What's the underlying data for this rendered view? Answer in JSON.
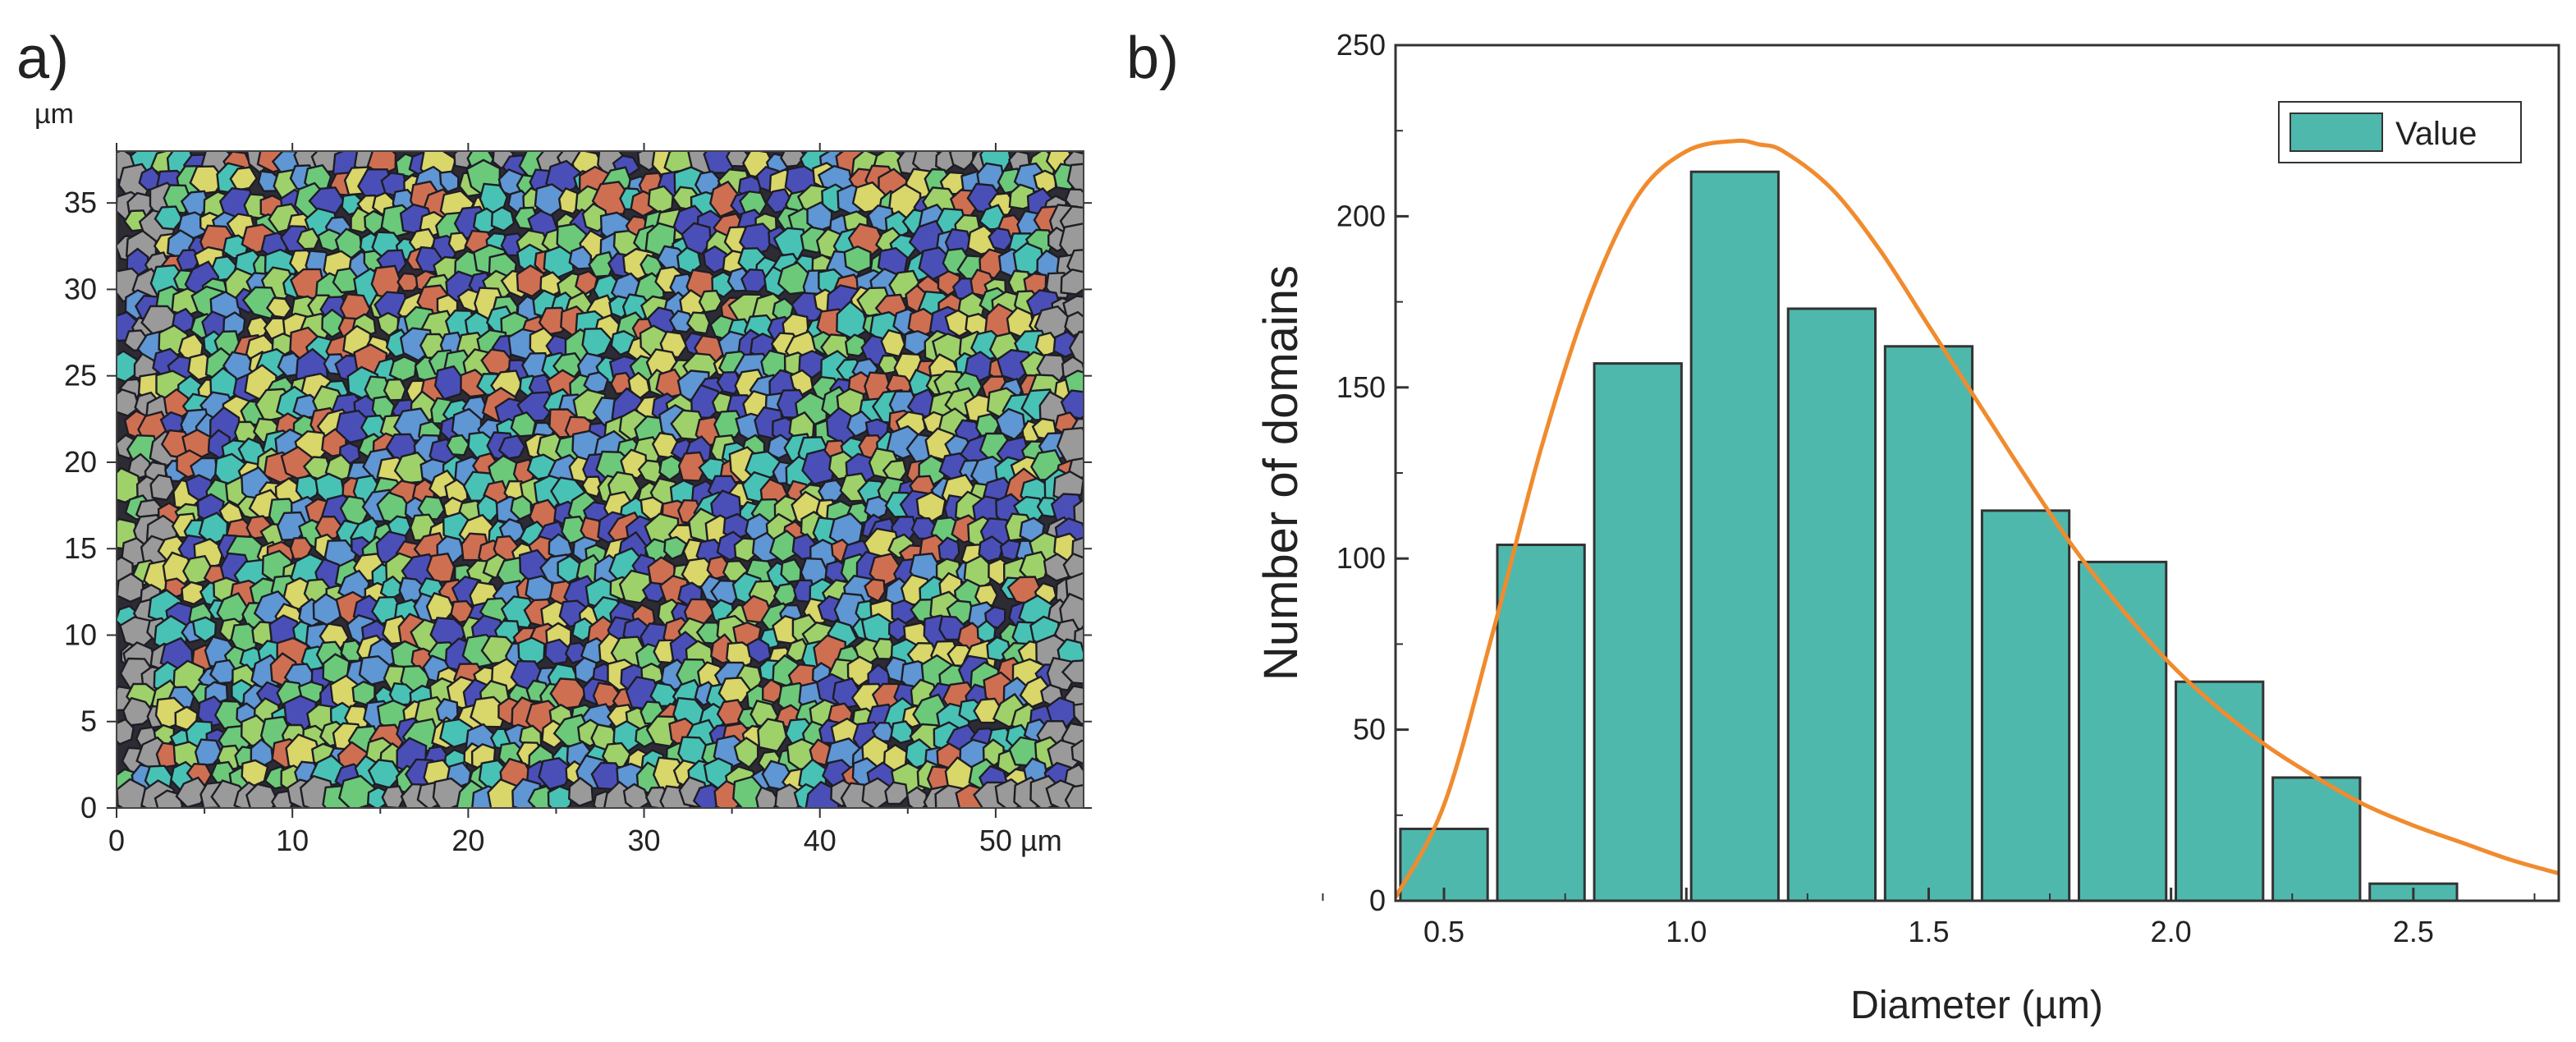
{
  "panel_a": {
    "label": "a)",
    "unit_label": "µm",
    "x_ticks": [
      "0",
      "10",
      "20",
      "30",
      "40",
      "50 µm"
    ],
    "y_ticks": [
      "0",
      "5",
      "10",
      "15",
      "20",
      "25",
      "30",
      "35"
    ],
    "x_range": [
      0,
      55
    ],
    "y_range": [
      0,
      38
    ],
    "palette": [
      "#4a4fb8",
      "#5f96d4",
      "#49c2b6",
      "#6cc97a",
      "#9ed16a",
      "#d9d66a",
      "#cf6f52",
      "#9a9a9a"
    ]
  },
  "panel_b": {
    "label": "b)"
  },
  "chart_data": {
    "type": "bar",
    "title": "",
    "xlabel": "Diameter (µm)",
    "ylabel": "Number of domains",
    "xlim": [
      0.4,
      2.8
    ],
    "ylim": [
      0,
      250
    ],
    "x_ticks": [
      0.5,
      1.0,
      1.5,
      2.0,
      2.5
    ],
    "x_tick_labels": [
      "0.5",
      "1.0",
      "1.5",
      "2.0",
      "2.5"
    ],
    "y_ticks": [
      0,
      50,
      100,
      150,
      200,
      250
    ],
    "y_tick_labels": [
      "0",
      "50",
      "100",
      "150",
      "200",
      "250"
    ],
    "bin_width": 0.2,
    "series": [
      {
        "name": "Value",
        "bar_color": "#4fb8ad",
        "bin_centers": [
          0.5,
          0.7,
          0.9,
          1.1,
          1.3,
          1.5,
          1.7,
          1.9,
          2.1,
          2.3,
          2.5
        ],
        "values": [
          21,
          104,
          157,
          213,
          173,
          162,
          114,
          99,
          64,
          36,
          5
        ]
      }
    ],
    "fit_curve": {
      "type": "lognormal",
      "color": "#f08b2e",
      "x": [
        0.4,
        0.5,
        0.6,
        0.7,
        0.8,
        0.9,
        1.0,
        1.1,
        1.15,
        1.2,
        1.3,
        1.4,
        1.5,
        1.6,
        1.7,
        1.8,
        1.9,
        2.0,
        2.1,
        2.2,
        2.3,
        2.4,
        2.5,
        2.6,
        2.7,
        2.8
      ],
      "y": [
        1,
        28,
        78,
        132,
        176,
        206,
        219,
        222,
        221,
        219,
        208,
        190,
        168,
        146,
        124,
        103,
        85,
        69,
        56,
        45,
        36,
        28,
        22,
        17,
        12,
        8
      ]
    },
    "legend": {
      "entries": [
        "Value"
      ],
      "position": "top-right"
    }
  }
}
